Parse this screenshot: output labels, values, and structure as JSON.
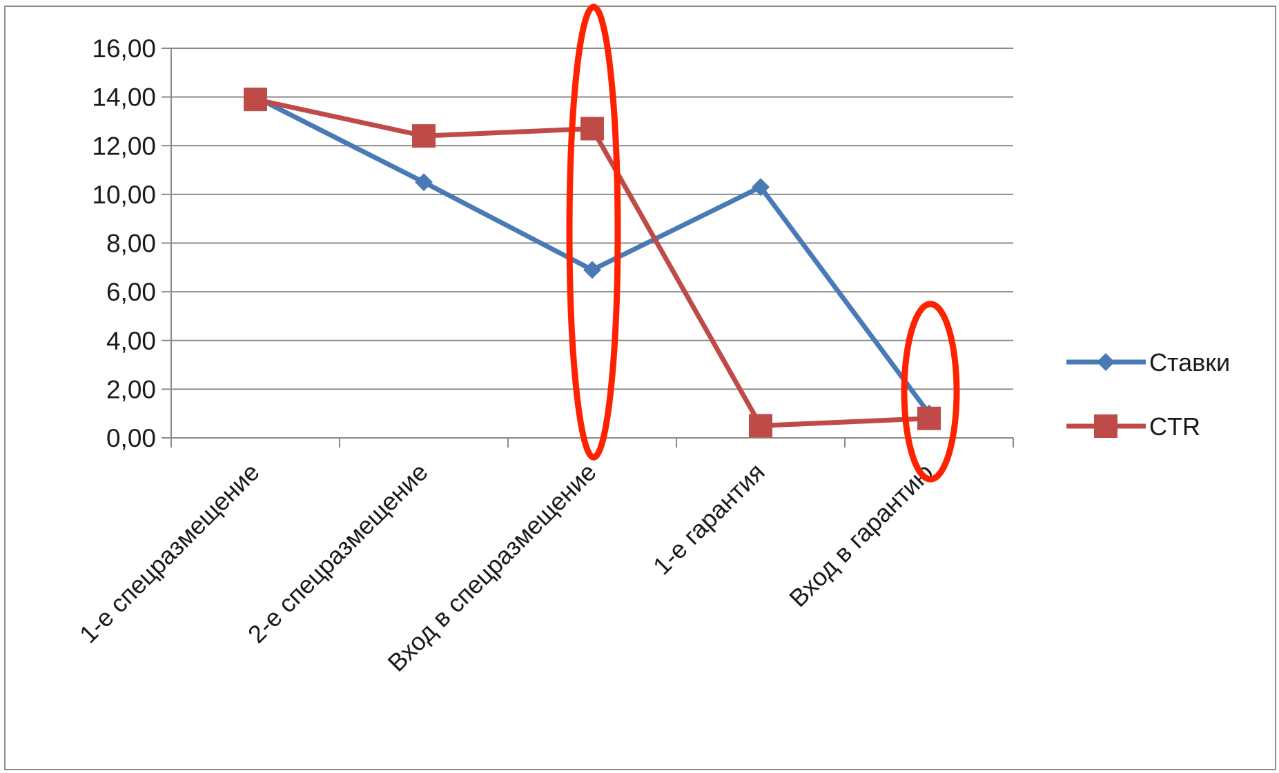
{
  "chart_data": {
    "type": "line",
    "categories": [
      "1-е спецразмещение",
      "2-е спецразмещение",
      "Вход в спецразмещение",
      "1-е гарантия",
      "Вход в гарантию"
    ],
    "series": [
      {
        "name": "Ставки",
        "values": [
          14.0,
          10.5,
          6.9,
          10.3,
          1.0
        ],
        "color": "#4a7ab5",
        "marker": "diamond"
      },
      {
        "name": "CTR",
        "values": [
          13.9,
          12.4,
          12.7,
          0.5,
          0.8
        ],
        "color": "#be4b48",
        "marker": "square"
      }
    ],
    "yticks": [
      "0,00",
      "2,00",
      "4,00",
      "6,00",
      "8,00",
      "10,00",
      "12,00",
      "14,00",
      "16,00"
    ],
    "ylim": [
      0,
      16
    ],
    "grid": true,
    "legend_position": "right",
    "annotations": [
      {
        "shape": "ellipse",
        "category": "Вход в спецразмещение",
        "y_range": [
          -0.8,
          17.7
        ],
        "color": "#ff2200"
      },
      {
        "shape": "ellipse",
        "category": "Вход в гарантию",
        "y_range": [
          -1.7,
          5.5
        ],
        "color": "#ff2200"
      }
    ]
  }
}
